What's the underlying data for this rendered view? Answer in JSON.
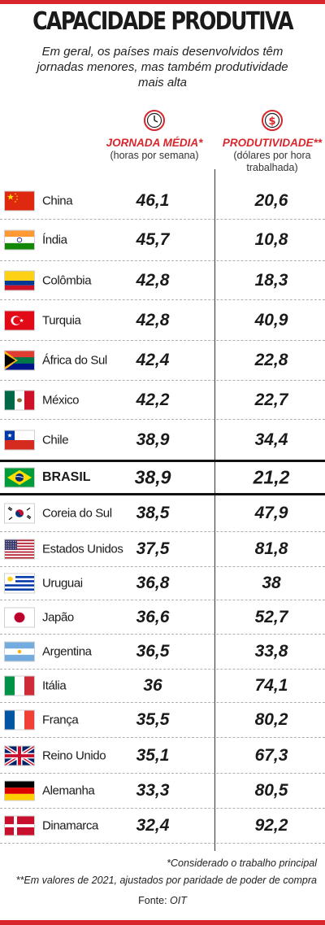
{
  "title": "CAPACIDADE PRODUTIVA",
  "subtitle": "Em geral, os países mais desenvolvidos têm jornadas menores, mas também produtividade mais alta",
  "col1": {
    "title": "JORNADA MÉDIA*",
    "unit": "(horas por semana)",
    "icon": "clock-icon"
  },
  "col2": {
    "title": "PRODUTIVIDADE**",
    "unit": "(dólares por hora trabalhada)",
    "icon": "dollar-icon"
  },
  "colors": {
    "accent": "#d7262c",
    "text": "#1a1a1a"
  },
  "chart_data": {
    "type": "table",
    "columns": [
      "JORNADA MÉDIA*",
      "PRODUTIVIDADE**"
    ],
    "rows": [
      {
        "flag": "cn",
        "country": "China",
        "jornada": "46,1",
        "produtividade": "20,6"
      },
      {
        "flag": "in",
        "country": "Índia",
        "jornada": "45,7",
        "produtividade": "10,8"
      },
      {
        "flag": "co",
        "country": "Colômbia",
        "jornada": "42,8",
        "produtividade": "18,3"
      },
      {
        "flag": "tr",
        "country": "Turquia",
        "jornada": "42,8",
        "produtividade": "40,9"
      },
      {
        "flag": "za",
        "country": "África do Sul",
        "jornada": "42,4",
        "produtividade": "22,8"
      },
      {
        "flag": "mx",
        "country": "México",
        "jornada": "42,2",
        "produtividade": "22,7"
      },
      {
        "flag": "cl",
        "country": "Chile",
        "jornada": "38,9",
        "produtividade": "34,4"
      },
      {
        "flag": "br",
        "country": "BRASIL",
        "jornada": "38,9",
        "produtividade": "21,2",
        "highlight": true
      },
      {
        "flag": "kr",
        "country": "Coreia do Sul",
        "jornada": "38,5",
        "produtividade": "47,9"
      },
      {
        "flag": "us",
        "country": "Estados Unidos",
        "jornada": "37,5",
        "produtividade": "81,8"
      },
      {
        "flag": "uy",
        "country": "Uruguai",
        "jornada": "36,8",
        "produtividade": "38"
      },
      {
        "flag": "jp",
        "country": "Japão",
        "jornada": "36,6",
        "produtividade": "52,7"
      },
      {
        "flag": "ar",
        "country": "Argentina",
        "jornada": "36,5",
        "produtividade": "33,8"
      },
      {
        "flag": "it",
        "country": "Itália",
        "jornada": "36",
        "produtividade": "74,1"
      },
      {
        "flag": "fr",
        "country": "França",
        "jornada": "35,5",
        "produtividade": "80,2"
      },
      {
        "flag": "gb",
        "country": "Reino Unido",
        "jornada": "35,1",
        "produtividade": "67,3"
      },
      {
        "flag": "de",
        "country": "Alemanha",
        "jornada": "33,3",
        "produtividade": "80,5"
      },
      {
        "flag": "dk",
        "country": "Dinamarca",
        "jornada": "32,4",
        "produtividade": "92,2"
      }
    ]
  },
  "footnotes": {
    "note1": "*Considerado o trabalho principal",
    "note2": "**Em valores de 2021, ajustados por paridade de poder de compra",
    "source_label": "Fonte:",
    "source": "OIT"
  }
}
